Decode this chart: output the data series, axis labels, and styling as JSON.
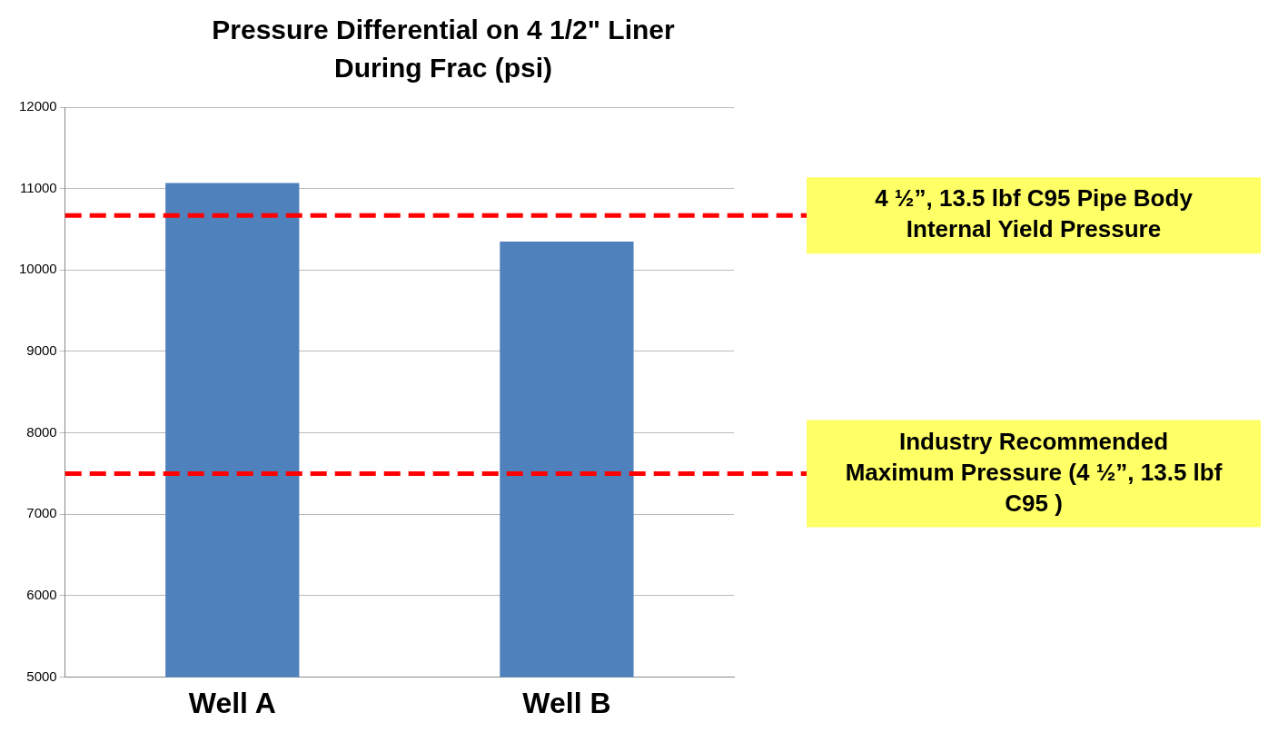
{
  "chart_data": {
    "type": "bar",
    "title": "Pressure Differential on 4 1/2\" Liner During Frac (psi)",
    "categories": [
      "Well A",
      "Well B"
    ],
    "values": [
      11070,
      10350
    ],
    "color": "#4f81bd",
    "ylim": [
      5000,
      12000
    ],
    "yticks": [
      5000,
      6000,
      7000,
      8000,
      9000,
      10000,
      11000,
      12000
    ],
    "grid": "y",
    "legend": false,
    "ref_lines": [
      {
        "axis": "y",
        "value": 10670,
        "label": "4 ½”, 13.5 lbf C95 Pipe Body Internal Yield Pressure",
        "color": "#ff0000",
        "line_style": "dashed"
      },
      {
        "axis": "y",
        "value": 7500,
        "label": "Industry Recommended Maximum Pressure (4 ½”, 13.5 lbf C95 )",
        "color": "#ff0000",
        "line_style": "dashed"
      }
    ]
  }
}
